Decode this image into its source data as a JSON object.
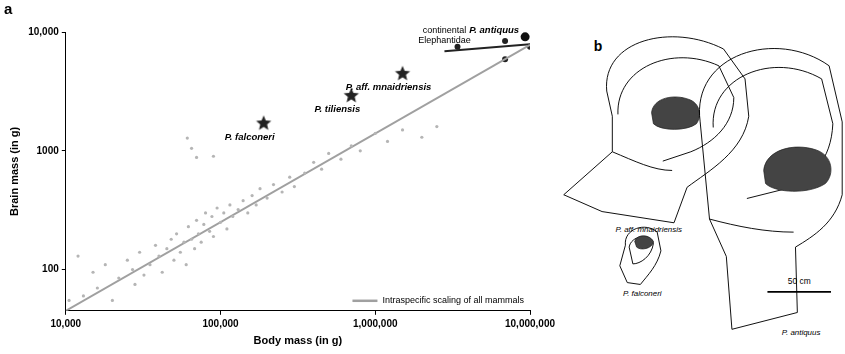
{
  "chart_data": {
    "type": "scatter",
    "panel_label": "a",
    "x_label": "Body mass (in g)",
    "y_label": "Brain mass (in g)",
    "log": true,
    "grid": false,
    "legend": "lower right",
    "xlim": [
      10000,
      10000000
    ],
    "xticks": [
      {
        "value": 10000,
        "label": "10,000"
      },
      {
        "value": 100000,
        "label": "100,000"
      },
      {
        "value": 1000000,
        "label": "1,000,000"
      },
      {
        "value": 10000000,
        "label": "10,000,000"
      }
    ],
    "ylim": [
      45,
      10000
    ],
    "yticks": [
      100,
      1000,
      {
        "value": 10000,
        "label": "10,000"
      }
    ],
    "series": [
      {
        "type": "scatter",
        "marker": "dot",
        "color": "#b5b5b5",
        "x": [
          10500,
          12000,
          13000,
          15000,
          16000,
          18000,
          20000,
          22000,
          25000,
          27000,
          28000,
          30000,
          32000,
          35000,
          38000,
          40000,
          42000,
          45000,
          48000,
          50000,
          52000,
          55000,
          58000,
          60000,
          62000,
          65000,
          68000,
          70000,
          72000,
          75000,
          78000,
          80000,
          85000,
          88000,
          90000,
          95000,
          100000,
          105000,
          110000,
          115000,
          120000,
          130000,
          140000,
          150000,
          160000,
          170000,
          180000,
          200000,
          220000,
          250000,
          280000,
          300000,
          350000,
          400000,
          450000,
          500000,
          600000,
          700000,
          800000,
          1000000,
          1200000,
          1500000,
          2000000,
          2500000,
          61000,
          65000,
          70000,
          90000
        ],
        "values": [
          55,
          130,
          60,
          95,
          70,
          110,
          55,
          85,
          120,
          100,
          75,
          140,
          90,
          110,
          160,
          130,
          95,
          150,
          180,
          120,
          200,
          140,
          170,
          110,
          230,
          180,
          150,
          260,
          200,
          170,
          240,
          300,
          210,
          280,
          190,
          330,
          250,
          300,
          220,
          350,
          280,
          320,
          380,
          300,
          420,
          350,
          480,
          400,
          520,
          450,
          600,
          500,
          650,
          800,
          700,
          950,
          850,
          1100,
          1000,
          1400,
          1200,
          1500,
          1300,
          1600,
          1280,
          1050,
          880,
          900
        ]
      },
      {
        "name": "Intraspecific scaling of all mammals",
        "type": "line",
        "color": "#a0a0a0",
        "x": [
          10000,
          10000000
        ],
        "values": [
          45,
          7800
        ]
      },
      {
        "type": "line",
        "color": "#222222",
        "label": "continental Elephantidae",
        "x": [
          2800000,
          10000000
        ],
        "values": [
          6900,
          7900
        ]
      },
      {
        "type": "scatter",
        "marker": "circle",
        "color": "#222222",
        "x": [
          3400000,
          6900000,
          6900000,
          10000000
        ],
        "values": [
          7500,
          8400,
          5900,
          7500
        ]
      },
      {
        "type": "scatter",
        "marker": "large circle",
        "color": "#111111",
        "x": [
          9300000
        ],
        "values": [
          9100
        ],
        "labels": [
          "P. antiquus"
        ]
      },
      {
        "type": "scatter",
        "marker": "star",
        "color": "#222222",
        "x": [
          190000,
          700000,
          1500000
        ],
        "values": [
          1700,
          2900,
          4450
        ],
        "labels": [
          "P. falconeri",
          "P. tiliensis",
          "P. aff. mnaidriensis"
        ]
      }
    ]
  },
  "panel_b": {
    "label": "b",
    "skulls": [
      "P. aff. mnaidriensis",
      "P. falconeri",
      "P. antiquus"
    ],
    "scale_bar": "50 cm"
  }
}
